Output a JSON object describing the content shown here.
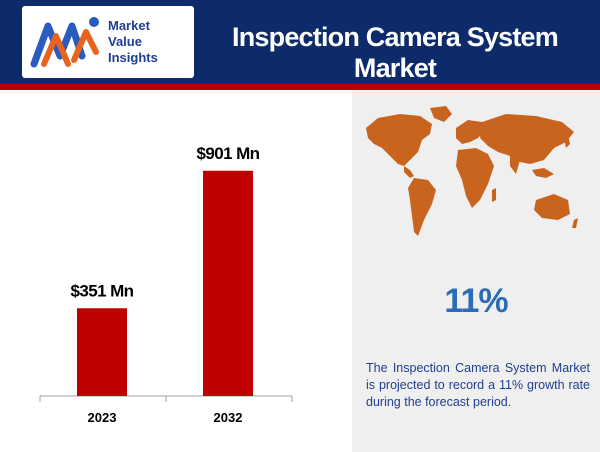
{
  "header": {
    "title": "Inspection Camera System Market",
    "logo": {
      "line1": "Market",
      "line2": "Value",
      "line3": "Insights"
    }
  },
  "colors": {
    "header_bg": "#0d2a6b",
    "accent_red": "#b80000",
    "bar": "#c00000",
    "map": "#c8641e",
    "cagr_text": "#2a6db5",
    "desc_text": "#1f3f8f",
    "right_panel_bg": "#efefef"
  },
  "chart_data": {
    "type": "bar",
    "categories": [
      "2023",
      "2032"
    ],
    "values": [
      351,
      901
    ],
    "value_labels": [
      "$351 Mn",
      "$901 Mn"
    ],
    "title": "",
    "xlabel": "",
    "ylabel": "",
    "ylim": [
      0,
      1000
    ],
    "grid": false,
    "legend": "none"
  },
  "summary": {
    "map_icon": "world-map-icon",
    "cagr": "11%",
    "description": "The Inspection Camera System Market is projected to record a 11% growth rate during the forecast period."
  }
}
